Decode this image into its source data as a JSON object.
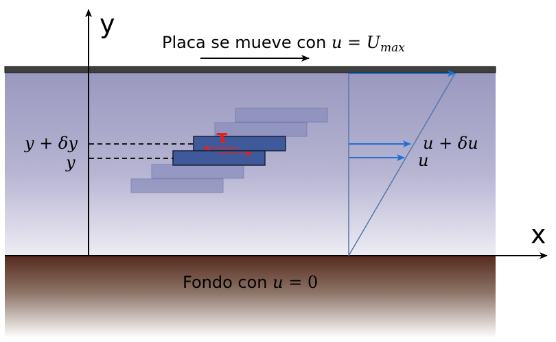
{
  "axes": {
    "y_label": "y",
    "x_label": "x"
  },
  "plate": {
    "label_prefix": "Placa se mueve con ",
    "label_var": "u",
    "label_eq": " = ",
    "label_U": "U",
    "label_sub": "max"
  },
  "bottom": {
    "label_prefix": "Fondo con ",
    "label_var": "u",
    "label_eq": " = 0"
  },
  "element": {
    "y_top_label": "y + δy",
    "y_label": "y",
    "tau_label": "τ"
  },
  "velocity": {
    "upper_label": "u + δu",
    "lower_label": "u"
  },
  "colors": {
    "fluid_top": "#9a98bf",
    "fluid_bottom": "#eceaf3",
    "ground_top": "#5a2e1f",
    "plate": "#3f3f3f",
    "layer_solid": "#3f5a9a",
    "layer_faded": "#8a8fbd",
    "arrow_blue": "#1f6fd6",
    "tau_red": "#e8201c"
  }
}
